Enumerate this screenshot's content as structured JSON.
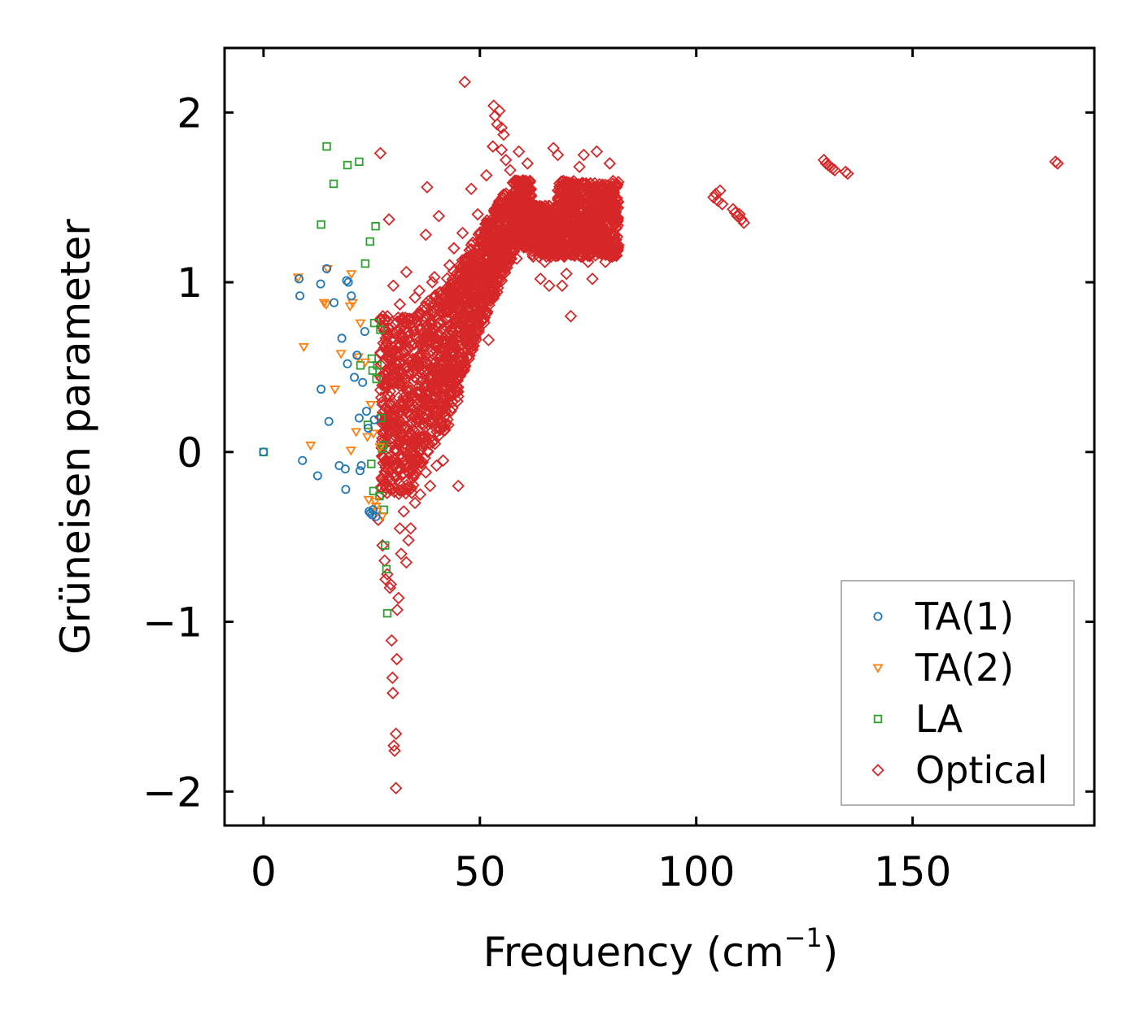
{
  "chart_data": {
    "type": "scatter",
    "xlabel": "Frequency (cm",
    "xlabel_sup": "−1",
    "xlabel_close": ")",
    "ylabel": "Grüneisen parameter",
    "xlim": [
      -9,
      192
    ],
    "ylim": [
      -2.2,
      2.38
    ],
    "xticks": [
      0,
      50,
      100,
      150
    ],
    "yticks": [
      -2,
      -1,
      0,
      1,
      2
    ],
    "ytick_labels": [
      "−2",
      "−1",
      "0",
      "1",
      "2"
    ],
    "legend_position": "bottom-right",
    "colors": {
      "ta1": "#1f77b4",
      "ta2": "#ff7f0e",
      "la": "#2ca02c",
      "optical": "#d62728"
    },
    "series": [
      {
        "key": "ta1",
        "name": "TA(1)",
        "marker": "circle",
        "points": [
          [
            0,
            0.0
          ],
          [
            8.2,
            1.02
          ],
          [
            8.4,
            0.92
          ],
          [
            9.0,
            -0.05
          ],
          [
            12.5,
            -0.14
          ],
          [
            13.2,
            0.99
          ],
          [
            13.3,
            0.37
          ],
          [
            14.6,
            1.08
          ],
          [
            15.1,
            0.18
          ],
          [
            16.3,
            0.88
          ],
          [
            17.5,
            -0.08
          ],
          [
            18.1,
            0.67
          ],
          [
            18.9,
            -0.1
          ],
          [
            19.0,
            -0.22
          ],
          [
            19.2,
            1.01
          ],
          [
            19.4,
            0.52
          ],
          [
            19.6,
            1.0
          ],
          [
            20.3,
            0.92
          ],
          [
            21.0,
            0.44
          ],
          [
            21.6,
            0.57
          ],
          [
            22.1,
            0.2
          ],
          [
            22.3,
            -0.11
          ],
          [
            22.6,
            -0.08
          ],
          [
            22.9,
            0.41
          ],
          [
            23.4,
            0.71
          ],
          [
            23.8,
            0.24
          ],
          [
            24.2,
            0.14
          ],
          [
            24.4,
            -0.35
          ],
          [
            24.7,
            -0.36
          ],
          [
            25.1,
            -0.37
          ],
          [
            25.3,
            -0.34
          ],
          [
            25.6,
            0.19
          ],
          [
            26.0,
            -0.38
          ]
        ]
      },
      {
        "key": "ta2",
        "name": "TA(2)",
        "marker": "triangle-down",
        "points": [
          [
            8.0,
            1.03
          ],
          [
            9.3,
            0.62
          ],
          [
            10.9,
            0.04
          ],
          [
            14.0,
            0.88
          ],
          [
            14.5,
            0.87
          ],
          [
            14.8,
            1.08
          ],
          [
            16.5,
            0.37
          ],
          [
            17.9,
            0.58
          ],
          [
            20.0,
            0.86
          ],
          [
            20.2,
            0.01
          ],
          [
            20.3,
            1.05
          ],
          [
            20.6,
            0.88
          ],
          [
            21.4,
            0.12
          ],
          [
            21.9,
            0.56
          ],
          [
            22.4,
            0.76
          ],
          [
            23.5,
            0.53
          ],
          [
            24.0,
            0.09
          ],
          [
            24.3,
            -0.28
          ],
          [
            24.8,
            0.28
          ],
          [
            25.4,
            0.11
          ],
          [
            25.8,
            -0.29
          ],
          [
            26.0,
            -0.32
          ],
          [
            26.2,
            -0.35
          ],
          [
            26.9,
            0.03
          ],
          [
            27.4,
            -0.38
          ]
        ]
      },
      {
        "key": "la",
        "name": "LA",
        "marker": "square",
        "points": [
          [
            0,
            0.0
          ],
          [
            13.3,
            1.34
          ],
          [
            14.6,
            1.8
          ],
          [
            16.2,
            1.58
          ],
          [
            19.4,
            1.69
          ],
          [
            22.1,
            1.71
          ],
          [
            22.4,
            0.51
          ],
          [
            23.5,
            1.11
          ],
          [
            24.1,
            0.16
          ],
          [
            24.6,
            1.24
          ],
          [
            24.9,
            -0.07
          ],
          [
            25.0,
            0.55
          ],
          [
            25.2,
            0.48
          ],
          [
            25.4,
            -0.23
          ],
          [
            25.6,
            0.76
          ],
          [
            25.9,
            1.33
          ],
          [
            26.1,
            0.43
          ],
          [
            26.3,
            0.51
          ],
          [
            26.8,
            -0.26
          ],
          [
            27.0,
            0.72
          ],
          [
            27.2,
            0.2
          ],
          [
            27.4,
            0.02
          ],
          [
            27.7,
            0.04
          ],
          [
            27.8,
            -0.34
          ],
          [
            28.1,
            -0.55
          ],
          [
            28.4,
            -0.69
          ],
          [
            28.6,
            -0.95
          ]
        ]
      },
      {
        "key": "optical",
        "name": "Optical",
        "marker": "diamond",
        "points": [
          [
            26.5,
            -0.4
          ],
          [
            27.0,
            1.76
          ],
          [
            27.5,
            -0.55
          ],
          [
            28.0,
            -0.64
          ],
          [
            28.2,
            -0.75
          ],
          [
            28.6,
            -0.72
          ],
          [
            29.0,
            1.37
          ],
          [
            29.2,
            -0.8
          ],
          [
            29.4,
            -0.78
          ],
          [
            29.6,
            -1.11
          ],
          [
            29.8,
            -1.33
          ],
          [
            29.9,
            -1.42
          ],
          [
            30.1,
            -1.73
          ],
          [
            30.3,
            -1.76
          ],
          [
            30.6,
            -1.98
          ],
          [
            30.6,
            -1.66
          ],
          [
            30.8,
            -1.22
          ],
          [
            30.9,
            -0.93
          ],
          [
            31.2,
            -0.86
          ],
          [
            31.5,
            -0.45
          ],
          [
            31.8,
            -0.6
          ],
          [
            32.4,
            -0.35
          ],
          [
            33.0,
            -0.65
          ],
          [
            33.5,
            -0.52
          ],
          [
            34.0,
            -0.45
          ],
          [
            35.0,
            -0.3
          ],
          [
            36.2,
            -0.25
          ],
          [
            37.5,
            -0.12
          ],
          [
            38.5,
            -0.2
          ],
          [
            40.0,
            -0.08
          ],
          [
            41.5,
            -0.05
          ],
          [
            45.0,
            -0.2
          ],
          [
            30.0,
            0.98
          ],
          [
            31.5,
            0.87
          ],
          [
            33.0,
            1.06
          ],
          [
            33.5,
            0.78
          ],
          [
            35.0,
            0.91
          ],
          [
            36.0,
            0.95
          ],
          [
            37.5,
            1.28
          ],
          [
            37.8,
            1.56
          ],
          [
            39.0,
            1.0
          ],
          [
            39.5,
            1.03
          ],
          [
            40.5,
            1.39
          ],
          [
            41.0,
            0.82
          ],
          [
            42.0,
            0.88
          ],
          [
            43.0,
            1.1
          ],
          [
            44.0,
            1.2
          ],
          [
            45.0,
            1.0
          ],
          [
            46.0,
            1.29
          ],
          [
            46.5,
            2.18
          ],
          [
            48.0,
            1.55
          ],
          [
            49.5,
            1.4
          ],
          [
            50.0,
            0.88
          ],
          [
            51.0,
            1.1
          ],
          [
            51.5,
            1.63
          ],
          [
            52.0,
            0.66
          ],
          [
            53.0,
            1.8
          ],
          [
            53.2,
            2.04
          ],
          [
            53.5,
            1.98
          ],
          [
            54.0,
            1.93
          ],
          [
            54.5,
            2.01
          ],
          [
            55.0,
            1.91
          ],
          [
            55.5,
            1.87
          ],
          [
            55.0,
            1.78
          ],
          [
            56.0,
            1.72
          ],
          [
            57.0,
            1.66
          ],
          [
            58.0,
            1.22
          ],
          [
            58.5,
            1.14
          ],
          [
            59.0,
            1.77
          ],
          [
            60.0,
            1.6
          ],
          [
            61.0,
            1.7
          ],
          [
            62.0,
            1.45
          ],
          [
            63.0,
            1.2
          ],
          [
            64.0,
            1.02
          ],
          [
            65.0,
            1.12
          ],
          [
            66.0,
            0.98
          ],
          [
            67.0,
            1.79
          ],
          [
            68.0,
            1.75
          ],
          [
            69.0,
            0.98
          ],
          [
            70.0,
            1.05
          ],
          [
            71.0,
            0.8
          ],
          [
            72.0,
            1.55
          ],
          [
            73.0,
            1.68
          ],
          [
            74.0,
            1.75
          ],
          [
            75.0,
            1.12
          ],
          [
            76.0,
            1.02
          ],
          [
            77.0,
            1.77
          ],
          [
            78.0,
            1.3
          ],
          [
            79.0,
            1.12
          ],
          [
            80.0,
            1.7
          ],
          [
            104.0,
            1.5
          ],
          [
            104.5,
            1.52
          ],
          [
            105.0,
            1.48
          ],
          [
            105.5,
            1.54
          ],
          [
            106.0,
            1.46
          ],
          [
            108.5,
            1.43
          ],
          [
            109.0,
            1.41
          ],
          [
            109.5,
            1.39
          ],
          [
            110.0,
            1.4
          ],
          [
            110.5,
            1.37
          ],
          [
            111.0,
            1.35
          ],
          [
            129.5,
            1.72
          ],
          [
            130.0,
            1.7
          ],
          [
            130.5,
            1.69
          ],
          [
            131.0,
            1.68
          ],
          [
            131.5,
            1.67
          ],
          [
            132.0,
            1.66
          ],
          [
            134.5,
            1.65
          ],
          [
            135.0,
            1.64
          ],
          [
            183.0,
            1.71
          ],
          [
            183.5,
            1.7
          ]
        ]
      }
    ]
  }
}
